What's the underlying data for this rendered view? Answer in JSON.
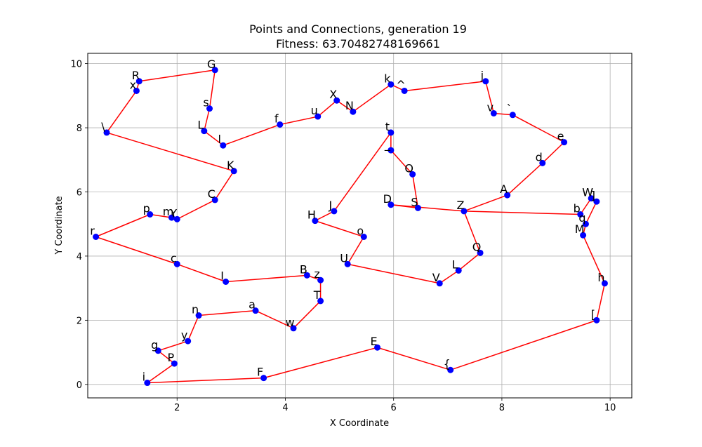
{
  "chart_data": {
    "type": "scatter",
    "title": "Points and Connections, generation 19",
    "subtitle": "Fitness: 63.70482748169661",
    "xlabel": "X Coordinate",
    "ylabel": "Y Coordinate",
    "xlim": [
      0.35,
      10.4
    ],
    "ylim": [
      -0.42,
      10.32
    ],
    "xticks": [
      2,
      4,
      6,
      8,
      10
    ],
    "yticks": [
      0,
      2,
      4,
      6,
      8,
      10
    ],
    "grid": true,
    "point_color": "#0000ff",
    "line_color": "#ff0000",
    "points": [
      {
        "label": "G",
        "x": 2.7,
        "y": 9.8
      },
      {
        "label": "s",
        "x": 2.6,
        "y": 8.6
      },
      {
        "label": "L",
        "x": 2.5,
        "y": 7.9
      },
      {
        "label": "l",
        "x": 2.85,
        "y": 7.45
      },
      {
        "label": "f",
        "x": 3.9,
        "y": 8.1
      },
      {
        "label": "u",
        "x": 4.6,
        "y": 8.35
      },
      {
        "label": "X",
        "x": 4.95,
        "y": 8.85
      },
      {
        "label": "N",
        "x": 5.25,
        "y": 8.5
      },
      {
        "label": "k",
        "x": 5.95,
        "y": 9.35
      },
      {
        "label": "^",
        "x": 6.2,
        "y": 9.15
      },
      {
        "label": "j",
        "x": 7.7,
        "y": 9.45
      },
      {
        "label": "v",
        "x": 7.85,
        "y": 8.45
      },
      {
        "label": "`",
        "x": 8.2,
        "y": 8.4
      },
      {
        "label": "e",
        "x": 9.15,
        "y": 7.55
      },
      {
        "label": "d",
        "x": 8.75,
        "y": 6.9
      },
      {
        "label": "A",
        "x": 8.1,
        "y": 5.9
      },
      {
        "label": "Z",
        "x": 7.3,
        "y": 5.4
      },
      {
        "label": "b",
        "x": 9.45,
        "y": 5.3
      },
      {
        "label": "W",
        "x": 9.65,
        "y": 5.8
      },
      {
        "label": "]",
        "x": 9.75,
        "y": 5.7
      },
      {
        "label": "q",
        "x": 9.55,
        "y": 5.0
      },
      {
        "label": "M",
        "x": 9.5,
        "y": 4.65
      },
      {
        "label": "h",
        "x": 9.9,
        "y": 3.15
      },
      {
        "label": "[",
        "x": 9.75,
        "y": 2.0
      },
      {
        "label": "{",
        "x": 7.05,
        "y": 0.45
      },
      {
        "label": "E",
        "x": 5.7,
        "y": 1.15
      },
      {
        "label": "F",
        "x": 3.6,
        "y": 0.2
      },
      {
        "label": "i",
        "x": 1.45,
        "y": 0.05
      },
      {
        "label": "P",
        "x": 1.95,
        "y": 0.65
      },
      {
        "label": "g",
        "x": 1.65,
        "y": 1.05
      },
      {
        "label": "y",
        "x": 2.2,
        "y": 1.35
      },
      {
        "label": "n",
        "x": 2.4,
        "y": 2.15
      },
      {
        "label": "a",
        "x": 3.45,
        "y": 2.3
      },
      {
        "label": "w",
        "x": 4.15,
        "y": 1.75
      },
      {
        "label": "T",
        "x": 4.65,
        "y": 2.6
      },
      {
        "label": "z",
        "x": 4.65,
        "y": 3.25
      },
      {
        "label": "B",
        "x": 4.4,
        "y": 3.4
      },
      {
        "label": "I",
        "x": 2.9,
        "y": 3.2
      },
      {
        "label": "c",
        "x": 2.0,
        "y": 3.75
      },
      {
        "label": "r",
        "x": 0.5,
        "y": 4.6
      },
      {
        "label": "p",
        "x": 1.5,
        "y": 5.3
      },
      {
        "label": "m",
        "x": 1.9,
        "y": 5.2
      },
      {
        "label": "Y",
        "x": 2.0,
        "y": 5.15
      },
      {
        "label": "C",
        "x": 2.7,
        "y": 5.75
      },
      {
        "label": "K",
        "x": 3.05,
        "y": 6.65
      },
      {
        "label": "\\",
        "x": 0.7,
        "y": 7.85
      },
      {
        "label": "x",
        "x": 1.25,
        "y": 9.15
      },
      {
        "label": "R",
        "x": 1.3,
        "y": 9.45
      },
      {
        "label": "t",
        "x": 5.95,
        "y": 7.85
      },
      {
        "label": "_",
        "x": 5.95,
        "y": 7.3
      },
      {
        "label": "O",
        "x": 6.35,
        "y": 6.55
      },
      {
        "label": "S",
        "x": 6.45,
        "y": 5.5
      },
      {
        "label": "D",
        "x": 5.95,
        "y": 5.6
      },
      {
        "label": "J",
        "x": 4.9,
        "y": 5.4
      },
      {
        "label": "H",
        "x": 4.55,
        "y": 5.1
      },
      {
        "label": "o",
        "x": 5.45,
        "y": 4.6
      },
      {
        "label": "U",
        "x": 5.15,
        "y": 3.75
      },
      {
        "label": "V",
        "x": 6.85,
        "y": 3.15
      },
      {
        "label": "L",
        "x": 7.2,
        "y": 3.55
      },
      {
        "label": "Q",
        "x": 7.6,
        "y": 4.1
      }
    ],
    "path": [
      [
        "R",
        "G"
      ],
      [
        "G",
        "s"
      ],
      [
        "s",
        "L"
      ],
      [
        "L",
        "l"
      ],
      [
        "l",
        "f"
      ],
      [
        "f",
        "u"
      ],
      [
        "u",
        "X"
      ],
      [
        "X",
        "N"
      ],
      [
        "N",
        "k"
      ],
      [
        "k",
        "^"
      ],
      [
        "^",
        "j"
      ],
      [
        "j",
        "v"
      ],
      [
        "v",
        "`"
      ],
      [
        "`",
        "e"
      ],
      [
        "e",
        "d"
      ],
      [
        "d",
        "A"
      ],
      [
        "A",
        "Z"
      ],
      [
        "Z",
        "b"
      ],
      [
        "b",
        "W"
      ],
      [
        "W",
        "]"
      ],
      [
        "]",
        "q"
      ],
      [
        "q",
        "M"
      ],
      [
        "M",
        "h"
      ],
      [
        "h",
        "["
      ],
      [
        "[",
        "{"
      ],
      [
        "{",
        "E"
      ],
      [
        "E",
        "F"
      ],
      [
        "F",
        "i"
      ],
      [
        "i",
        "P"
      ],
      [
        "P",
        "g"
      ],
      [
        "g",
        "y"
      ],
      [
        "y",
        "n"
      ],
      [
        "n",
        "a"
      ],
      [
        "a",
        "w"
      ],
      [
        "w",
        "T"
      ],
      [
        "T",
        "z"
      ],
      [
        "z",
        "B"
      ],
      [
        "B",
        "I"
      ],
      [
        "I",
        "c"
      ],
      [
        "c",
        "r"
      ],
      [
        "r",
        "p"
      ],
      [
        "p",
        "m"
      ],
      [
        "m",
        "Y"
      ],
      [
        "Y",
        "C"
      ],
      [
        "C",
        "K"
      ],
      [
        "K",
        "\\"
      ],
      [
        "\\",
        "x"
      ],
      [
        "x",
        "R"
      ],
      [
        "t",
        "_"
      ],
      [
        "_",
        "O"
      ],
      [
        "O",
        "S"
      ],
      [
        "S",
        "D"
      ],
      [
        "D",
        "Z"
      ],
      [
        "Z",
        "Q"
      ],
      [
        "Q",
        "L"
      ],
      [
        "L",
        "V"
      ],
      [
        "V",
        "U"
      ],
      [
        "U",
        "o"
      ],
      [
        "o",
        "H"
      ],
      [
        "H",
        "J"
      ],
      [
        "J",
        "t"
      ]
    ]
  }
}
